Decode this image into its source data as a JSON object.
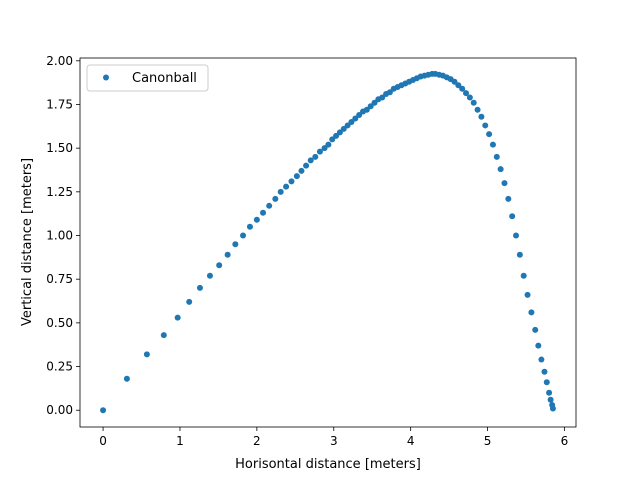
{
  "chart_data": {
    "type": "scatter",
    "title": "",
    "xlabel": "Horisontal distance [meters]",
    "ylabel": "Vertical distance [meters]",
    "xlim": [
      -0.3,
      6.15
    ],
    "ylim": [
      -0.096,
      2.016
    ],
    "xticks": [
      0,
      1,
      2,
      3,
      4,
      5,
      6
    ],
    "xtick_labels": [
      "0",
      "1",
      "2",
      "3",
      "4",
      "5",
      "6"
    ],
    "yticks": [
      0.0,
      0.25,
      0.5,
      0.75,
      1.0,
      1.25,
      1.5,
      1.75,
      2.0
    ],
    "ytick_labels": [
      "0.00",
      "0.25",
      "0.50",
      "0.75",
      "1.00",
      "1.25",
      "1.50",
      "1.75",
      "2.00"
    ],
    "grid": false,
    "legend_position": "upper-left",
    "color": "#1f77b4",
    "series": [
      {
        "name": "Canonball",
        "marker": "circle",
        "x": [
          0.0,
          0.31,
          0.57,
          0.79,
          0.97,
          1.12,
          1.26,
          1.39,
          1.51,
          1.62,
          1.72,
          1.82,
          1.91,
          2.0,
          2.08,
          2.16,
          2.24,
          2.31,
          2.38,
          2.45,
          2.52,
          2.58,
          2.64,
          2.7,
          2.76,
          2.82,
          2.88,
          2.93,
          2.98,
          3.03,
          3.08,
          3.13,
          3.18,
          3.23,
          3.28,
          3.33,
          3.38,
          3.43,
          3.48,
          3.53,
          3.58,
          3.63,
          3.68,
          3.73,
          3.78,
          3.83,
          3.88,
          3.93,
          3.98,
          4.03,
          4.08,
          4.13,
          4.18,
          4.23,
          4.28,
          4.32,
          4.37,
          4.42,
          4.47,
          4.52,
          4.57,
          4.62,
          4.67,
          4.72,
          4.77,
          4.82,
          4.87,
          4.92,
          4.97,
          5.02,
          5.07,
          5.12,
          5.17,
          5.22,
          5.27,
          5.32,
          5.37,
          5.42,
          5.47,
          5.52,
          5.57,
          5.62,
          5.66,
          5.7,
          5.74,
          5.77,
          5.8,
          5.82,
          5.84,
          5.85
        ],
        "y": [
          0.0,
          0.18,
          0.32,
          0.43,
          0.53,
          0.62,
          0.7,
          0.77,
          0.83,
          0.89,
          0.95,
          1.0,
          1.05,
          1.09,
          1.13,
          1.17,
          1.21,
          1.25,
          1.28,
          1.31,
          1.34,
          1.37,
          1.4,
          1.43,
          1.45,
          1.48,
          1.5,
          1.52,
          1.55,
          1.57,
          1.59,
          1.61,
          1.63,
          1.65,
          1.67,
          1.69,
          1.71,
          1.72,
          1.74,
          1.76,
          1.78,
          1.79,
          1.81,
          1.82,
          1.84,
          1.85,
          1.86,
          1.87,
          1.88,
          1.89,
          1.9,
          1.91,
          1.915,
          1.92,
          1.925,
          1.925,
          1.92,
          1.915,
          1.905,
          1.895,
          1.88,
          1.86,
          1.84,
          1.815,
          1.79,
          1.76,
          1.72,
          1.68,
          1.63,
          1.58,
          1.52,
          1.45,
          1.38,
          1.3,
          1.21,
          1.11,
          1.0,
          0.89,
          0.77,
          0.66,
          0.56,
          0.46,
          0.37,
          0.29,
          0.22,
          0.16,
          0.1,
          0.06,
          0.03,
          0.01
        ]
      }
    ]
  }
}
